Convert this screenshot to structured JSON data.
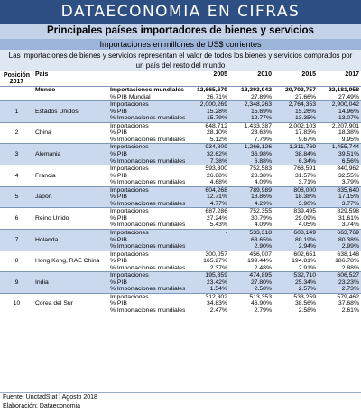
{
  "banner": "DATAECONOMIA EN CIFRAS",
  "title": "Principales países importadores de bienes y servicios",
  "subtitle": "Importaciones en millones de US$ corrientes",
  "description_line1": "Las importaciones de bienes y servicios representan el valor de todos los bienes y servicios comprados por",
  "description_line2": "un país del resto del mundo",
  "header": {
    "position_line1": "Posición",
    "position_line2": "2017",
    "country": "País",
    "years": [
      "2005",
      "2010",
      "2015",
      "2017"
    ]
  },
  "world": {
    "label": "Mundo",
    "rows": [
      {
        "metric": "Importaciones mundiales",
        "values": [
          "12,665,679",
          "18,393,942",
          "20,703,757",
          "22,181,958"
        ]
      },
      {
        "metric": "% PIB Mundial",
        "values": [
          "26.71%",
          "27.89%",
          "27.66%",
          "27.49%"
        ]
      }
    ]
  },
  "countries": [
    {
      "rank": "1",
      "name": "Estados Unidos",
      "rows": [
        {
          "metric": "Importaciones",
          "values": [
            "2,000,269",
            "2,348,263",
            "2,764,353",
            "2,900,042"
          ]
        },
        {
          "metric": "% PIB",
          "values": [
            "15.28%",
            "15.69%",
            "15.26%",
            "14.96%"
          ]
        },
        {
          "metric": "% Importaciones mundiales",
          "values": [
            "15.79%",
            "12.77%",
            "13.35%",
            "13.07%"
          ]
        }
      ]
    },
    {
      "rank": "2",
      "name": "China",
      "rows": [
        {
          "metric": "Importaciones",
          "values": [
            "648,712",
            "1,433,387",
            "2,002,103",
            "2,207,901"
          ]
        },
        {
          "metric": "% PIB",
          "values": [
            "28.10%",
            "23.63%",
            "17.83%",
            "18.38%"
          ]
        },
        {
          "metric": "% Importaciones mundiales",
          "values": [
            "5.12%",
            "7.79%",
            "9.67%",
            "9.95%"
          ]
        }
      ]
    },
    {
      "rank": "3",
      "name": "Alemania",
      "rows": [
        {
          "metric": "Importaciones",
          "values": [
            "934,809",
            "1,266,126",
            "1,311,769",
            "1,455,744"
          ]
        },
        {
          "metric": "% PIB",
          "values": [
            "32.62%",
            "36.98%",
            "38.84%",
            "39.51%"
          ]
        },
        {
          "metric": "% Importaciones mundiales",
          "values": [
            "7.38%",
            "6.88%",
            "6.34%",
            "6.56%"
          ]
        }
      ]
    },
    {
      "rank": "4",
      "name": "Francia",
      "rows": [
        {
          "metric": "Importaciones",
          "values": [
            "593,300",
            "752,583",
            "768,591",
            "840,962"
          ]
        },
        {
          "metric": "% PIB",
          "values": [
            "26.88%",
            "28.38%",
            "31.57%",
            "32.55%"
          ]
        },
        {
          "metric": "% Importaciones mundiales",
          "values": [
            "4.68%",
            "4.09%",
            "3.71%",
            "3.79%"
          ]
        }
      ]
    },
    {
      "rank": "5",
      "name": "Japón",
      "rows": [
        {
          "metric": "Importaciones",
          "values": [
            "604,268",
            "789,989",
            "808,000",
            "835,640"
          ]
        },
        {
          "metric": "% PIB",
          "values": [
            "12.71%",
            "13.86%",
            "18.38%",
            "17.15%"
          ]
        },
        {
          "metric": "% Importaciones mundiales",
          "values": [
            "4.77%",
            "4.29%",
            "3.90%",
            "3.77%"
          ]
        }
      ]
    },
    {
      "rank": "6",
      "name": "Reino Unido",
      "rows": [
        {
          "metric": "Importaciones",
          "values": [
            "687,286",
            "752,355",
            "839,495",
            "829,598"
          ]
        },
        {
          "metric": "% PIB",
          "values": [
            "27.24%",
            "30.79%",
            "29.09%",
            "31.61%"
          ]
        },
        {
          "metric": "% Importaciones mundiales",
          "values": [
            "5.43%",
            "4.09%",
            "4.05%",
            "3.74%"
          ]
        }
      ]
    },
    {
      "rank": "7",
      "name": "Holanda",
      "rows": [
        {
          "metric": "Importaciones",
          "values": [
            "-",
            "533,318",
            "608,149",
            "663,769"
          ]
        },
        {
          "metric": "% PIB",
          "values": [
            "",
            "63.65%",
            "80.19%",
            "80.38%"
          ]
        },
        {
          "metric": "% Importaciones mundiales",
          "values": [
            "",
            "2.90%",
            "2.94%",
            "2.99%"
          ]
        }
      ]
    },
    {
      "rank": "8",
      "name": "Hong Kong, RAE China",
      "rows": [
        {
          "metric": "Importaciones",
          "values": [
            "300,057",
            "456,007",
            "602,651",
            "638,148"
          ]
        },
        {
          "metric": "% PIB",
          "values": [
            "165.27%",
            "199.44%",
            "194.81%",
            "186.78%"
          ]
        },
        {
          "metric": "% Importaciones mundiales",
          "values": [
            "2.37%",
            "2.48%",
            "2.91%",
            "2.88%"
          ]
        }
      ]
    },
    {
      "rank": "9",
      "name": "India",
      "rows": [
        {
          "metric": "Importaciones",
          "values": [
            "195,359",
            "474,895",
            "532,710",
            "606,527"
          ]
        },
        {
          "metric": "% PIB",
          "values": [
            "23.42%",
            "27.80%",
            "25.34%",
            "23.23%"
          ]
        },
        {
          "metric": "% Importaciones mundiales",
          "values": [
            "1.54%",
            "2.58%",
            "2.57%",
            "2.73%"
          ]
        }
      ]
    },
    {
      "rank": "10",
      "name": "Corea del Sur",
      "rows": [
        {
          "metric": "Importaciones",
          "values": [
            "312,802",
            "513,353",
            "533,259",
            "579,462"
          ]
        },
        {
          "metric": "% PIB",
          "values": [
            "34.83%",
            "46.90%",
            "38.56%",
            "37.68%"
          ]
        },
        {
          "metric": "% Importaciones mundiales",
          "values": [
            "2.47%",
            "2.79%",
            "2.58%",
            "2.61%"
          ]
        }
      ]
    }
  ],
  "footer": {
    "source": "Fuente: UnctadStat | Agosto 2018",
    "author": "Elaboración: Dataeconomia"
  }
}
